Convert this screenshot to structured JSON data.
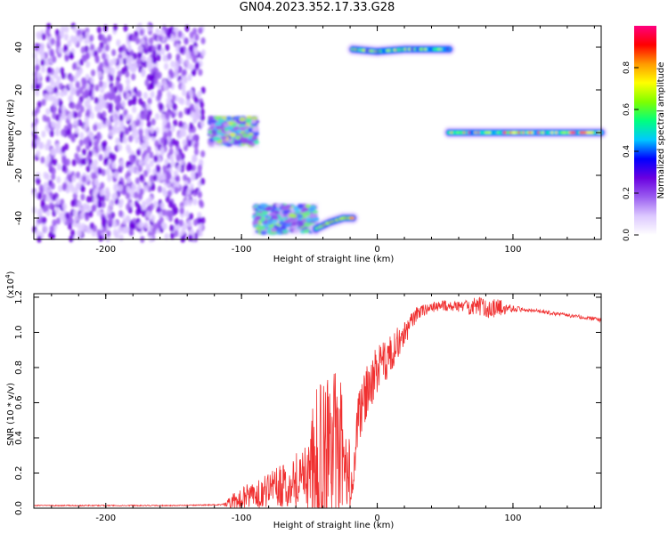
{
  "figure_title": "GN04.2023.352.17.33.G28",
  "colors": {
    "snr_line": "#f03030",
    "colormap": [
      "#ffffff",
      "#dcc8ff",
      "#9a5cf0",
      "#6a00e0",
      "#0000ff",
      "#00c8ff",
      "#00ff7f",
      "#7fff00",
      "#ffff00",
      "#ff9900",
      "#ff0000",
      "#ff007f"
    ]
  },
  "chart_data": [
    {
      "type": "heatmap",
      "xlabel": "Height of straight line (km)",
      "ylabel": "Frequency (Hz)",
      "xlim": [
        -253,
        165
      ],
      "ylim": [
        -50,
        50
      ],
      "xticks": [
        -200,
        -100,
        0,
        100
      ],
      "yticks": [
        -40,
        -20,
        0,
        20,
        40
      ],
      "colorbar": {
        "label": "Normalized spectral amplitude",
        "range": [
          0.0,
          1.0
        ],
        "ticks": [
          "0.0",
          "0.2",
          "0.4",
          "0.6",
          "0.8"
        ]
      },
      "features": [
        {
          "kind": "noise",
          "x_range": [
            -253,
            -128
          ],
          "y_range": [
            -50,
            50
          ],
          "amplitude": 0.1
        },
        {
          "kind": "cluster",
          "x_range": [
            -123,
            -89
          ],
          "y_range": [
            -6,
            7
          ],
          "amplitude": 0.55
        },
        {
          "kind": "cluster",
          "x_range": [
            -90,
            -45
          ],
          "y_range": [
            -47,
            -34
          ],
          "amplitude": 0.5
        },
        {
          "kind": "band",
          "x": [
            -45,
            -35,
            -25,
            -18
          ],
          "y": [
            -45,
            -42,
            -40,
            -40
          ],
          "amplitude": 0.6
        },
        {
          "kind": "band",
          "x": [
            -18,
            0,
            20,
            53
          ],
          "y": [
            39,
            38,
            39,
            39
          ],
          "amplitude": 0.55
        },
        {
          "kind": "band",
          "x": [
            53,
            100,
            165
          ],
          "y": [
            0,
            0,
            0
          ],
          "amplitude": 0.7
        }
      ]
    },
    {
      "type": "line",
      "xlabel": "Height of straight line (km)",
      "ylabel": "SNR (10 * v/v)",
      "yscale_label": "(x10",
      "yscale_exp": "4",
      "y_unit_multiplier": 10000,
      "xlim": [
        -253,
        165
      ],
      "ylim": [
        0,
        1.22
      ],
      "xticks": [
        -200,
        -100,
        0,
        100
      ],
      "yticks": [
        0.0,
        0.2,
        0.4,
        0.6,
        0.8,
        1.0,
        1.2
      ],
      "series": [
        {
          "x": [
            -253,
            -200,
            -150,
            -115,
            -105,
            -90,
            -70,
            -55,
            -45,
            -35,
            -28,
            -22,
            -18,
            -15,
            -10,
            -5,
            0,
            5,
            10,
            15,
            20,
            25,
            30,
            40,
            50,
            60,
            70,
            80,
            90,
            100,
            110,
            120,
            130,
            140,
            150,
            160,
            165
          ],
          "y": [
            0.015,
            0.015,
            0.015,
            0.02,
            0.05,
            0.1,
            0.15,
            0.22,
            0.35,
            0.4,
            0.4,
            0.3,
            0.1,
            0.5,
            0.65,
            0.75,
            0.8,
            0.85,
            0.9,
            0.95,
            1.0,
            1.07,
            1.12,
            1.15,
            1.16,
            1.15,
            1.16,
            1.15,
            1.15,
            1.14,
            1.13,
            1.12,
            1.11,
            1.1,
            1.09,
            1.08,
            1.07
          ],
          "noise_amplitude": [
            0.0,
            0.0,
            0.0,
            0.0,
            0.05,
            0.08,
            0.12,
            0.18,
            0.4,
            0.5,
            0.45,
            0.3,
            0.05,
            0.15,
            0.15,
            0.15,
            0.15,
            0.12,
            0.1,
            0.1,
            0.08,
            0.05,
            0.04,
            0.03,
            0.03,
            0.03,
            0.05,
            0.06,
            0.05,
            0.02,
            0.01,
            0.01,
            0.01,
            0.01,
            0.01,
            0.01,
            0.01
          ]
        }
      ]
    }
  ]
}
